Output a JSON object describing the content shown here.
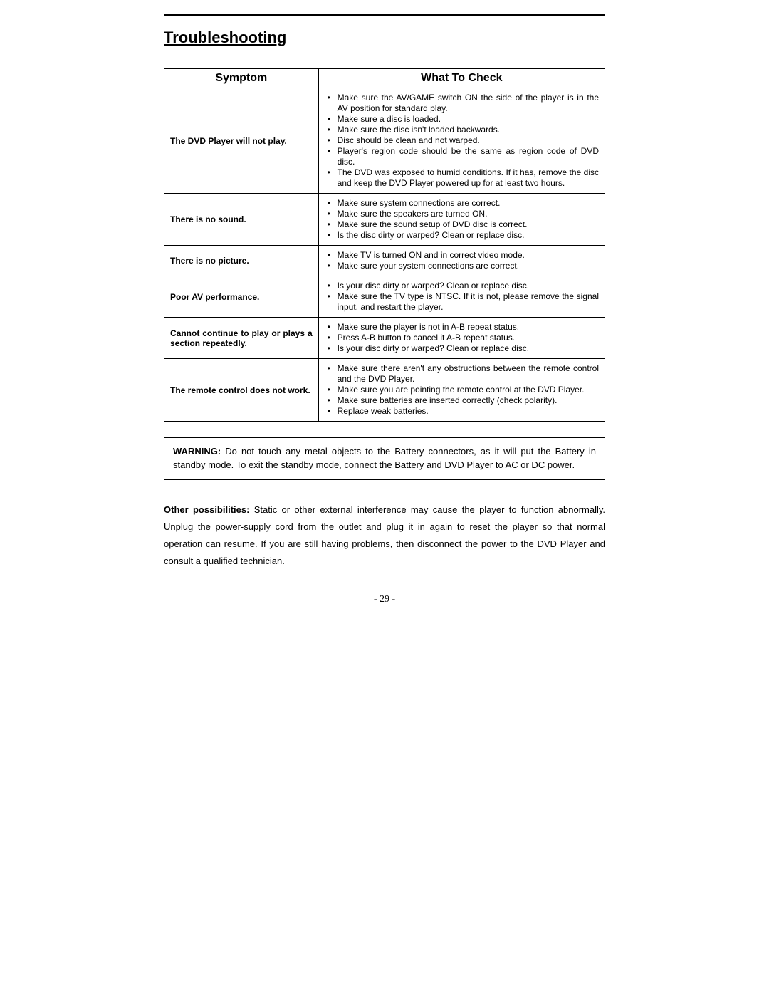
{
  "title": "Troubleshooting",
  "table": {
    "headers": {
      "symptom": "Symptom",
      "check": "What To Check"
    },
    "rows": [
      {
        "symptom": "The DVD Player will not play.",
        "checks": [
          "Make sure the AV/GAME switch ON the side of the player is in the AV position for standard play.",
          "Make sure a disc is loaded.",
          "Make sure the disc isn't loaded backwards.",
          "Disc should be clean and not warped.",
          "Player's region code should be the same as region code of DVD disc.",
          "The DVD was exposed to humid conditions.  If it has, remove the disc and keep the DVD Player powered up for at least two hours."
        ]
      },
      {
        "symptom": "There is no sound.",
        "checks": [
          "Make sure system connections are correct.",
          "Make sure the speakers are turned ON.",
          "Make sure the sound setup of DVD disc is correct.",
          "Is the disc dirty or warped? Clean or replace disc."
        ]
      },
      {
        "symptom": "There is no picture.",
        "checks": [
          "Make TV is turned ON and in correct video mode.",
          "Make sure your system connections are correct."
        ]
      },
      {
        "symptom": "Poor AV performance.",
        "checks": [
          "Is your disc dirty or warped? Clean or replace disc.",
          "Make sure the TV type is NTSC. If it is not, please remove the signal input, and restart the player."
        ]
      },
      {
        "symptom": "Cannot continue to play or plays a section repeatedly.",
        "checks": [
          "Make sure the player is not in A-B repeat status.",
          "Press A-B button to cancel it A-B repeat status.",
          "Is your disc dirty or warped? Clean or replace disc."
        ]
      },
      {
        "symptom": "The remote control does not work.",
        "checks": [
          "Make sure there aren't any obstructions between the remote control and the DVD Player.",
          "Make sure you are pointing the remote control at the DVD Player.",
          "Make sure batteries are inserted correctly (check polarity).",
          "Replace weak batteries."
        ]
      }
    ]
  },
  "warning": {
    "label": "WARNING:",
    "text": " Do not touch any metal objects to the Battery connectors, as it will put the Battery in standby mode.  To exit the standby mode, connect the Battery and DVD Player to AC or DC power."
  },
  "other": {
    "label": "Other possibilities:",
    "text": "  Static or other external interference may cause the player to function abnormally. Unplug the power-supply cord from the outlet and plug it in again to reset the player so that normal operation can resume. If you are still having problems, then disconnect the power to the DVD Player and consult a qualified technician."
  },
  "pageNumber": "- 29 -"
}
